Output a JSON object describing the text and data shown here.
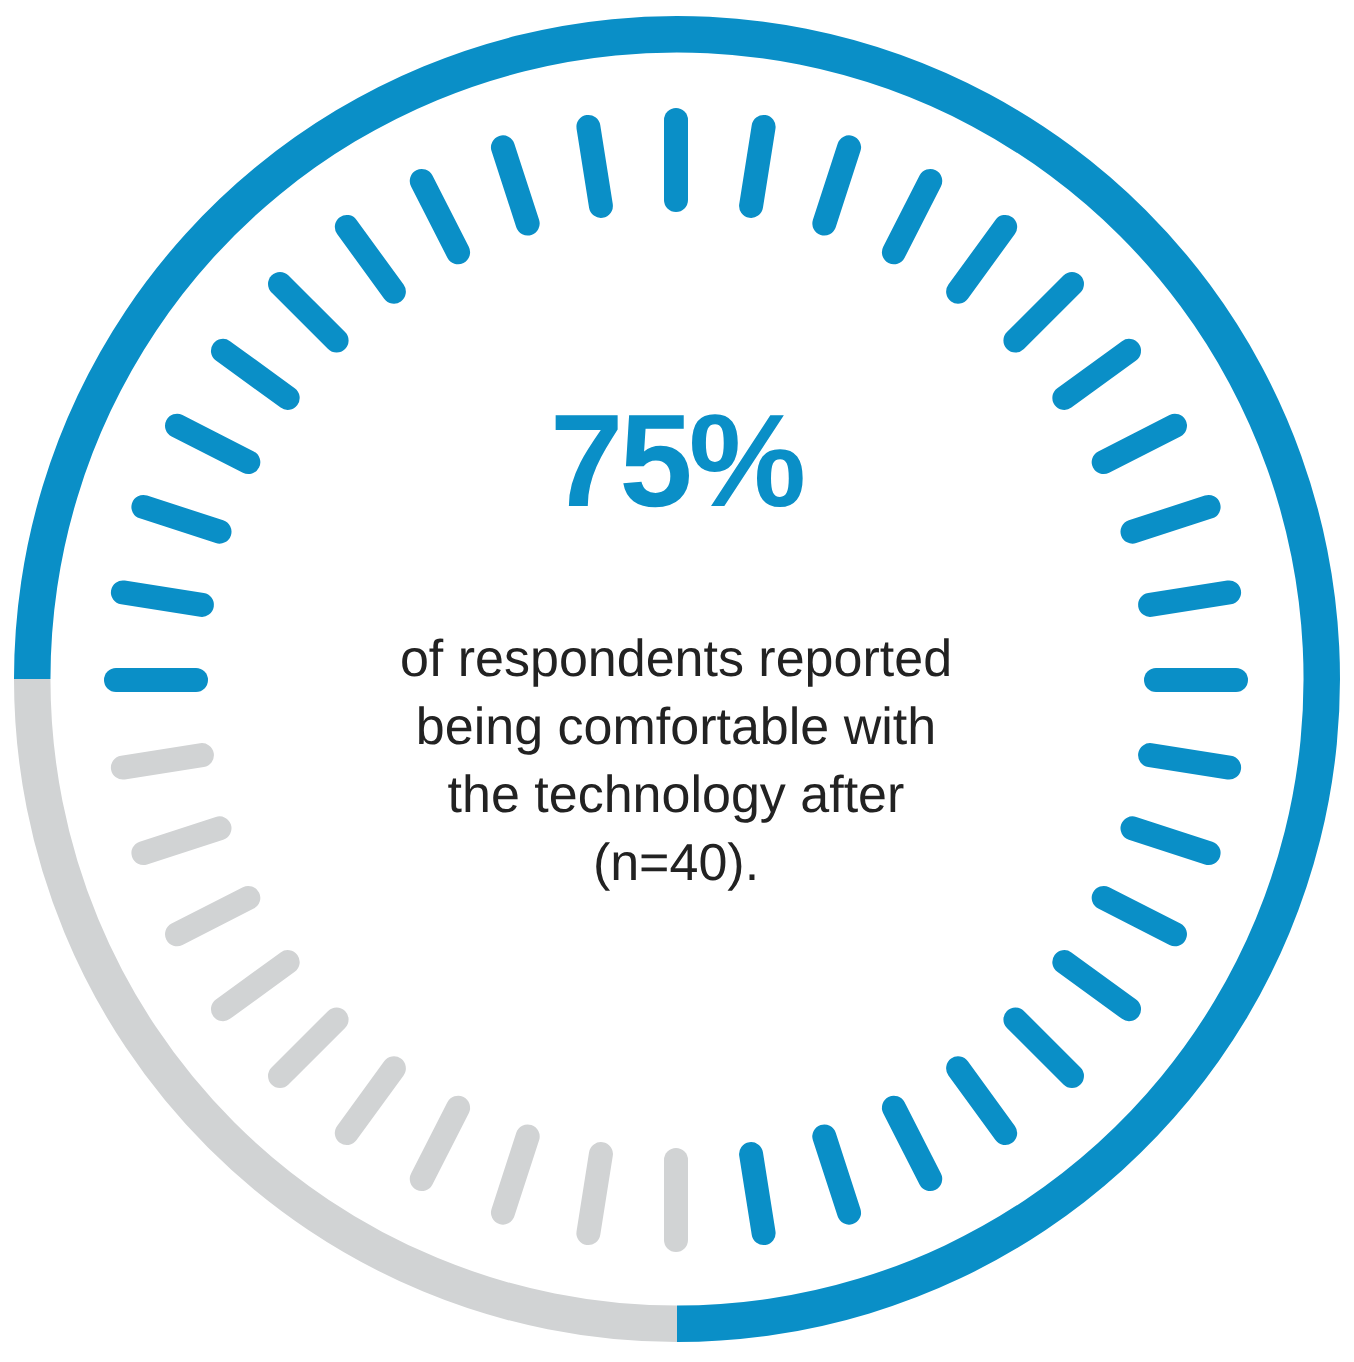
{
  "chart_data": {
    "type": "donut",
    "categories": [
      null,
      null
    ],
    "values": [
      75,
      25
    ],
    "colors": [
      "#0a8fc7",
      "#d1d3d4"
    ],
    "value_labels": [
      "75%",
      null
    ],
    "annotations": [
      "of respondents reported being comfortable with the technology after (n=40)."
    ]
  }
}
